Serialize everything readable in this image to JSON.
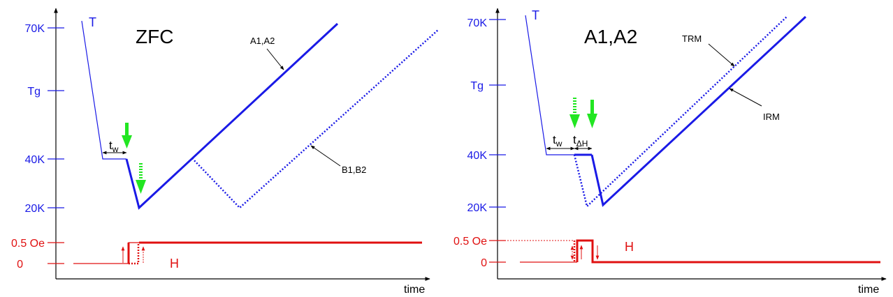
{
  "colors": {
    "temperature": "#1a1ae6",
    "field": "#e01010",
    "arrow": "#22e622",
    "axis": "#000000"
  },
  "left_panel": {
    "title": "ZFC",
    "t_label": "T",
    "h_label": "H",
    "x_label": "time",
    "y_ticks": {
      "t70": "70K",
      "tg": "Tg",
      "t40": "40K",
      "t20": "20K"
    },
    "h_ticks": {
      "h05": "0.5 Oe",
      "h0": "0"
    },
    "wait_time": {
      "main": "t",
      "sub": "w"
    },
    "curve_labels": {
      "solid": "A1,A2",
      "dotted": "B1,B2"
    }
  },
  "right_panel": {
    "title": "A1,A2",
    "t_label": "T",
    "h_label": "H",
    "x_label": "time",
    "y_ticks": {
      "t70": "70K",
      "tg": "Tg",
      "t40": "40K",
      "t20": "20K"
    },
    "h_ticks": {
      "h05": "0.5 Oe",
      "h0": "0"
    },
    "wait_time": {
      "main": "t",
      "sub": "w"
    },
    "field_time": {
      "main": "t",
      "sub": "ΔH"
    },
    "curve_labels": {
      "dotted": "TRM",
      "solid": "IRM"
    }
  }
}
